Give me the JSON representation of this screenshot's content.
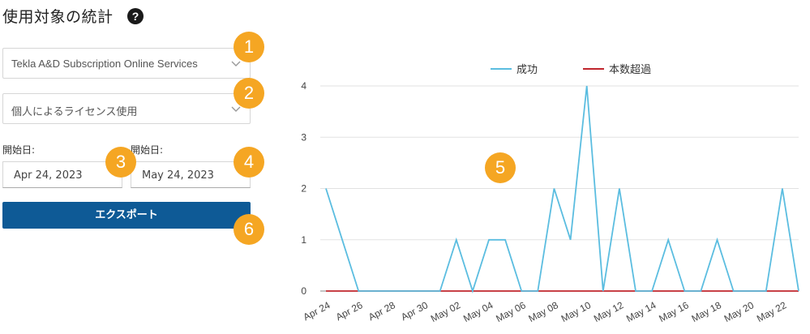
{
  "page": {
    "title": "使用対象の統計",
    "help_icon": "question-circle-icon"
  },
  "filters": {
    "subscription": {
      "value": "Tekla A&D Subscription Online Services"
    },
    "license_type": {
      "value": "個人によるライセンス使用"
    },
    "start_date": {
      "label": "開始日:",
      "value": "Apr 24, 2023"
    },
    "end_date": {
      "label": "開始日:",
      "value": "May 24, 2023"
    },
    "export_label": "エクスポート"
  },
  "badges": [
    "1",
    "2",
    "3",
    "4",
    "5",
    "6"
  ],
  "colors": {
    "accent": "#0e5a96",
    "badge": "#f5a623",
    "success": "#5bbde0",
    "overage": "#c0262d"
  },
  "chart_data": {
    "type": "line",
    "x": [
      "Apr 24",
      "Apr 25",
      "Apr 26",
      "Apr 27",
      "Apr 28",
      "Apr 29",
      "Apr 30",
      "May 01",
      "May 02",
      "May 03",
      "May 04",
      "May 05",
      "May 06",
      "May 07",
      "May 08",
      "May 09",
      "May 10",
      "May 11",
      "May 12",
      "May 13",
      "May 14",
      "May 15",
      "May 16",
      "May 17",
      "May 18",
      "May 19",
      "May 20",
      "May 21",
      "May 22",
      "May 23"
    ],
    "tick_labels": [
      "Apr 24",
      "Apr 26",
      "Apr 28",
      "Apr 30",
      "May 02",
      "May 04",
      "May 06",
      "May 08",
      "May 10",
      "May 12",
      "May 14",
      "May 16",
      "May 18",
      "May 20",
      "May 22"
    ],
    "series": [
      {
        "name": "成功",
        "color": "#5bbde0",
        "values": [
          2,
          1,
          0,
          0,
          0,
          0,
          0,
          0,
          1,
          0,
          1,
          1,
          0,
          0,
          2,
          1,
          4,
          0,
          2,
          0,
          0,
          1,
          0,
          0,
          1,
          0,
          0,
          0,
          2,
          0
        ]
      },
      {
        "name": "本数超過",
        "color": "#c0262d",
        "values": [
          0,
          0,
          0,
          0,
          0,
          0,
          0,
          0,
          0,
          0,
          0,
          0,
          0,
          0,
          0,
          0,
          0,
          0,
          0,
          0,
          0,
          0,
          0,
          0,
          0,
          0,
          0,
          0,
          0,
          0
        ]
      }
    ],
    "ylim": [
      0,
      4
    ],
    "yticks": [
      0,
      1,
      2,
      3,
      4
    ],
    "legend": "top-center",
    "grid": true
  }
}
